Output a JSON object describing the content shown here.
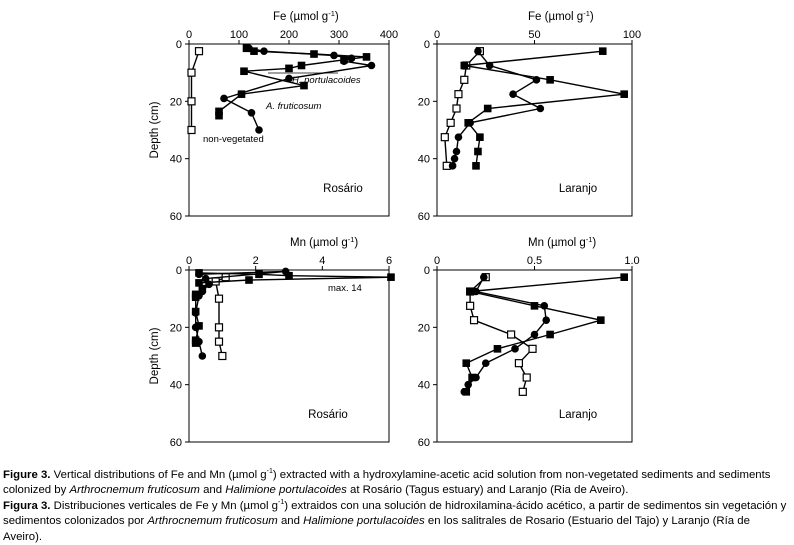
{
  "chart_data": [
    {
      "type": "line",
      "site": "Rosário",
      "xlabel": "Fe (µmol g",
      "xlabel_sup": "-1",
      "ylabel": "Depth (cm)",
      "xlim": [
        0,
        400
      ],
      "ylim": [
        0,
        60
      ],
      "xticks": [
        "0",
        "100",
        "200",
        "300",
        "400"
      ],
      "yticks": [
        "0",
        "20",
        "40",
        "60"
      ],
      "annotations": [
        "H. portulacoides",
        "A. fruticosum",
        "non-vegetated"
      ],
      "series": [
        {
          "name": "non-vegetated",
          "marker": "open-square",
          "x": [
            20,
            5,
            5,
            5
          ],
          "y": [
            2.5,
            10,
            20,
            30
          ]
        },
        {
          "name": "A. fruticosum",
          "marker": "filled-circle",
          "x": [
            120,
            150,
            290,
            325,
            310,
            365,
            200,
            70,
            125,
            140
          ],
          "y": [
            1.5,
            2.5,
            4,
            5,
            6,
            7.5,
            12,
            19,
            24,
            30
          ]
        },
        {
          "name": "H. portulacoides",
          "marker": "filled-square",
          "x": [
            115,
            130,
            250,
            355,
            310,
            225,
            200,
            110,
            230,
            105,
            60,
            60
          ],
          "y": [
            1.5,
            2.5,
            3.5,
            4.5,
            5.5,
            7.5,
            8.5,
            9.5,
            14.5,
            17.5,
            23.5,
            25
          ]
        }
      ]
    },
    {
      "type": "line",
      "site": "Laranjo",
      "xlabel": "Fe (µmol g",
      "xlabel_sup": "-1",
      "xlim": [
        0,
        100
      ],
      "ylim": [
        0,
        60
      ],
      "xticks": [
        "0",
        "50",
        "100"
      ],
      "yticks": [
        "0",
        "20",
        "40",
        "60"
      ],
      "series": [
        {
          "marker": "open-square",
          "x": [
            22,
            15,
            14,
            11,
            10,
            7,
            4,
            5
          ],
          "y": [
            2.5,
            7.5,
            12.5,
            17.5,
            22.5,
            27.5,
            32.5,
            42.5
          ]
        },
        {
          "marker": "filled-circle",
          "x": [
            21,
            27,
            51,
            39,
            53,
            17,
            11,
            10,
            9,
            8
          ],
          "y": [
            2.5,
            7.5,
            12.5,
            17.5,
            22.5,
            27.5,
            32.5,
            37.5,
            40,
            42.5
          ]
        },
        {
          "marker": "filled-square",
          "x": [
            85,
            14,
            58,
            96,
            26,
            16,
            22,
            21,
            20
          ],
          "y": [
            2.5,
            7.5,
            12.5,
            17.5,
            22.5,
            27.5,
            32.5,
            37.5,
            42.5
          ]
        }
      ]
    },
    {
      "type": "line",
      "site": "Rosário",
      "xlabel": "Mn (µmol g",
      "xlabel_sup": "-1",
      "ylabel": "Depth (cm)",
      "xlim": [
        0,
        6
      ],
      "ylim": [
        0,
        60
      ],
      "xticks": [
        "0",
        "2",
        "4",
        "6"
      ],
      "yticks": [
        "0",
        "20",
        "40",
        "60"
      ],
      "annotations": [
        "max. 14"
      ],
      "series": [
        {
          "marker": "open-square",
          "x": [
            1.1,
            0.8,
            0.9,
            0.9,
            0.9,
            1.0
          ],
          "y": [
            2.5,
            4,
            10,
            20,
            25,
            30
          ]
        },
        {
          "marker": "filled-circle",
          "x": [
            0.3,
            2.9,
            0.5,
            0.6,
            0.4,
            0.3,
            0.2,
            0.2,
            0.3,
            0.4
          ],
          "y": [
            1.5,
            0.5,
            3,
            5,
            7.5,
            9,
            15,
            20,
            25,
            30
          ]
        },
        {
          "marker": "filled-square",
          "x": [
            0.3,
            2.1,
            3.0,
            6.2,
            1.8,
            0.3,
            0.4,
            0.2,
            0.2,
            0.2,
            0.3,
            0.2,
            0.2
          ],
          "y": [
            1,
            1.5,
            2,
            2.5,
            3.5,
            4.5,
            6.5,
            8.5,
            9.5,
            14.5,
            19.5,
            24.5,
            25.5
          ]
        }
      ]
    },
    {
      "type": "line",
      "site": "Laranjo",
      "xlabel": "Mn (µmol g",
      "xlabel_sup": "-1",
      "xlim": [
        0,
        1.0
      ],
      "ylim": [
        0,
        60
      ],
      "xticks": [
        "0",
        "0.5",
        "1.0"
      ],
      "yticks": [
        "0",
        "20",
        "40",
        "60"
      ],
      "series": [
        {
          "marker": "open-square",
          "x": [
            0.25,
            0.17,
            0.17,
            0.19,
            0.38,
            0.49,
            0.42,
            0.46,
            0.44
          ],
          "y": [
            2.5,
            7.5,
            12.5,
            17.5,
            22.5,
            27.5,
            32.5,
            37.5,
            42.5
          ]
        },
        {
          "marker": "filled-circle",
          "x": [
            0.24,
            0.2,
            0.55,
            0.56,
            0.5,
            0.4,
            0.25,
            0.2,
            0.16,
            0.14
          ],
          "y": [
            2.5,
            7.5,
            12.5,
            17.5,
            22.5,
            27.5,
            32.5,
            37.5,
            40,
            42.5
          ]
        },
        {
          "marker": "filled-square",
          "x": [
            0.96,
            0.17,
            0.5,
            0.84,
            0.58,
            0.31,
            0.15,
            0.18,
            0.15
          ],
          "y": [
            2.5,
            7.5,
            12.5,
            17.5,
            22.5,
            27.5,
            32.5,
            37.5,
            42.5
          ]
        }
      ]
    }
  ],
  "caption": {
    "en": {
      "label": "Figure 3.",
      "t1": " Vertical distributions of Fe and Mn (µmol g",
      "sup": "-1",
      "t2": ") extracted with a hydroxylamine-acetic acid solution from non-vegetated sediments and sediments colonized by ",
      "sp1": "Arthrocnemum fruticosum",
      "t3": " and ",
      "sp2": "Halimione portulacoides",
      "t4": "  at Rosário (Tagus estuary) and Laranjo (Ria de Aveiro)."
    },
    "es": {
      "label": "Figura 3.",
      "t1": " Distribuciones verticales de Fe y Mn (µmol g",
      "sup": "-1",
      "t2": ") extraidos con una solución de hidroxilamina-ácido acético, a partir de sedimentos sin vegetación y sedimentos colonizados por ",
      "sp1": "Arthrocnemum fruticosum",
      "t3": " and ",
      "sp2": "Halimione portulacoides",
      "t4": " en  los salitrales de Rosario (Estuario del Tajo) y Laranjo (Ría de Aveiro)."
    }
  }
}
